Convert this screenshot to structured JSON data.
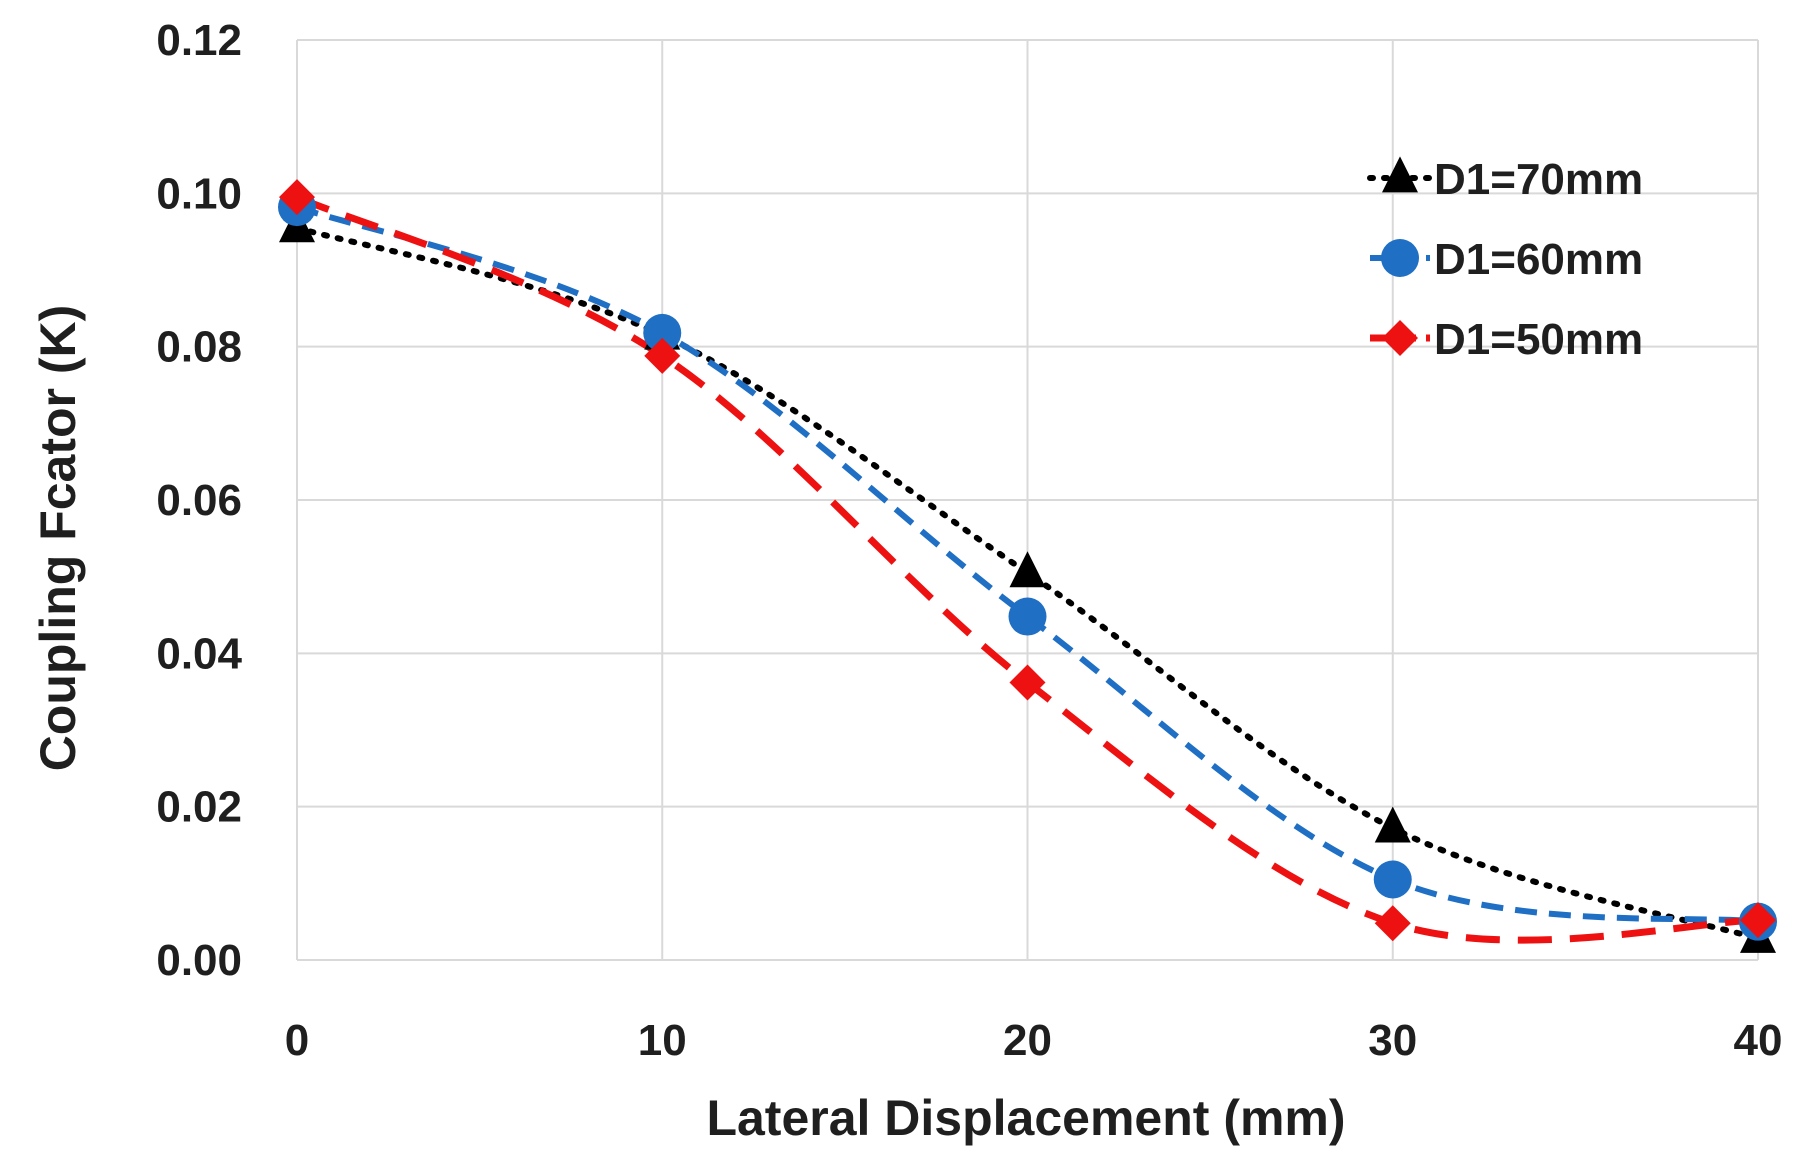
{
  "chart_data": {
    "type": "line",
    "title": "",
    "xlabel": "Lateral Displacement (mm)",
    "ylabel": "Coupling Fcator (K)",
    "x": [
      0,
      10,
      20,
      30,
      40
    ],
    "xticks": [
      "0",
      "10",
      "20",
      "30",
      "40"
    ],
    "yticks": [
      "0.00",
      "0.02",
      "0.04",
      "0.06",
      "0.08",
      "0.10",
      "0.12"
    ],
    "xlim": [
      0,
      40
    ],
    "ylim": [
      0,
      0.12
    ],
    "grid": true,
    "legend_position": "top-right",
    "series": [
      {
        "name": "D1=70mm",
        "values": [
          0.0955,
          0.0815,
          0.0505,
          0.0172,
          0.0028
        ],
        "color": "#000000",
        "marker": "triangle",
        "line": "dotted"
      },
      {
        "name": "D1=60mm",
        "values": [
          0.0982,
          0.0818,
          0.0448,
          0.0105,
          0.005
        ],
        "color": "#1f6fc5",
        "marker": "circle",
        "line": "dashed"
      },
      {
        "name": "D1=50mm",
        "values": [
          0.0995,
          0.0788,
          0.0362,
          0.0048,
          0.0052
        ],
        "color": "#ee1111",
        "marker": "diamond",
        "line": "long-dashed"
      }
    ]
  }
}
